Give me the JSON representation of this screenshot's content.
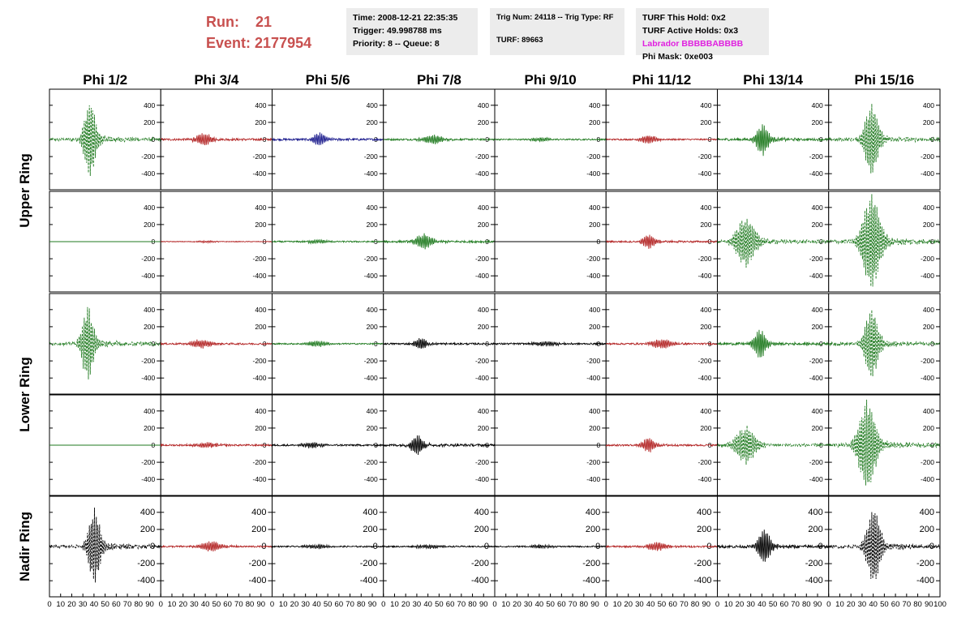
{
  "header": {
    "run_label": "Run:",
    "run_value": "21",
    "event_label": "Event:",
    "event_value": "2177954",
    "time": "Time: 2008-12-21 22:35:35",
    "trigger": "Trigger: 49.998788 ms",
    "priority_queue": "Priority: 8 -- Queue: 8",
    "trig_num_type": "Trig Num: 24118 -- Trig Type: RF",
    "turf": "TURF: 89663",
    "turf_this_hold": "TURF This Hold: 0x2",
    "turf_active_holds": "TURF Active Holds: 0x3",
    "labrador": "Labrador BBBBBABBBB",
    "phi_mask": "Phi Mask: 0xe003"
  },
  "colors": {
    "green": "#1f7a1f",
    "red": "#b22222",
    "blue": "#1a1a8c",
    "black": "#000000",
    "header_red": "#c8504f",
    "labrador": "#e020e0"
  },
  "chart_data": {
    "type": "line",
    "title": "",
    "columns": [
      "Phi 1/2",
      "Phi 3/4",
      "Phi 5/6",
      "Phi 7/8",
      "Phi 9/10",
      "Phi 11/12",
      "Phi 13/14",
      "Phi 15/16"
    ],
    "rows": [
      "Upper Ring",
      "Lower Ring",
      "Nadir Ring"
    ],
    "xlim": [
      0,
      100
    ],
    "x_ticks": [
      0,
      10,
      20,
      30,
      40,
      50,
      60,
      70,
      80,
      90,
      100
    ],
    "ylim": [
      -550,
      550
    ],
    "y_ticks": [
      -400,
      -200,
      0,
      200,
      400
    ],
    "panel_rows": [
      {
        "panels": [
          {
            "color": "green",
            "dashed": true,
            "amp": 420,
            "center": 36,
            "width": 6,
            "noise": 18
          },
          {
            "color": "red",
            "dashed": false,
            "amp": 70,
            "center": 38,
            "width": 8,
            "noise": 12
          },
          {
            "color": "blue",
            "dashed": false,
            "amp": 70,
            "center": 42,
            "width": 6,
            "noise": 12
          },
          {
            "color": "green",
            "dashed": false,
            "amp": 50,
            "center": 44,
            "width": 10,
            "noise": 10
          },
          {
            "color": "green",
            "dashed": false,
            "amp": 20,
            "center": 40,
            "width": 10,
            "noise": 8
          },
          {
            "color": "red",
            "dashed": false,
            "amp": 45,
            "center": 38,
            "width": 8,
            "noise": 8
          },
          {
            "color": "green",
            "dashed": false,
            "amp": 170,
            "center": 40,
            "width": 6,
            "noise": 14
          },
          {
            "color": "green",
            "dashed": true,
            "amp": 380,
            "center": 38,
            "width": 7,
            "noise": 18
          }
        ]
      },
      {
        "panels": [
          {
            "color": "green",
            "dashed": false,
            "amp": 0,
            "center": 40,
            "width": 6,
            "noise": 0
          },
          {
            "color": "red",
            "dashed": false,
            "amp": 10,
            "center": 40,
            "width": 10,
            "noise": 4
          },
          {
            "color": "green",
            "dashed": false,
            "amp": 20,
            "center": 40,
            "width": 10,
            "noise": 8
          },
          {
            "color": "green",
            "dashed": false,
            "amp": 85,
            "center": 36,
            "width": 8,
            "noise": 12
          },
          {
            "color": "black",
            "dashed": false,
            "amp": 0,
            "center": 40,
            "width": 6,
            "noise": 0
          },
          {
            "color": "red",
            "dashed": false,
            "amp": 80,
            "center": 38,
            "width": 6,
            "noise": 10
          },
          {
            "color": "green",
            "dashed": true,
            "amp": 260,
            "center": 25,
            "width": 10,
            "noise": 18
          },
          {
            "color": "green",
            "dashed": true,
            "amp": 520,
            "center": 38,
            "width": 9,
            "noise": 22
          }
        ]
      },
      {
        "panels": [
          {
            "color": "green",
            "dashed": true,
            "amp": 400,
            "center": 34,
            "width": 6,
            "noise": 18
          },
          {
            "color": "red",
            "dashed": false,
            "amp": 45,
            "center": 35,
            "width": 10,
            "noise": 10
          },
          {
            "color": "green",
            "dashed": false,
            "amp": 30,
            "center": 40,
            "width": 10,
            "noise": 8
          },
          {
            "color": "black",
            "dashed": false,
            "amp": 65,
            "center": 33,
            "width": 6,
            "noise": 10
          },
          {
            "color": "black",
            "dashed": false,
            "amp": 25,
            "center": 45,
            "width": 12,
            "noise": 10
          },
          {
            "color": "red",
            "dashed": false,
            "amp": 55,
            "center": 50,
            "width": 10,
            "noise": 10
          },
          {
            "color": "green",
            "dashed": false,
            "amp": 160,
            "center": 38,
            "width": 6,
            "noise": 14
          },
          {
            "color": "green",
            "dashed": true,
            "amp": 380,
            "center": 38,
            "width": 7,
            "noise": 18
          }
        ]
      },
      {
        "panels": [
          {
            "color": "green",
            "dashed": false,
            "amp": 0,
            "center": 40,
            "width": 6,
            "noise": 0
          },
          {
            "color": "red",
            "dashed": false,
            "amp": 25,
            "center": 40,
            "width": 12,
            "noise": 10
          },
          {
            "color": "black",
            "dashed": false,
            "amp": 30,
            "center": 35,
            "width": 10,
            "noise": 10
          },
          {
            "color": "black",
            "dashed": false,
            "amp": 110,
            "center": 30,
            "width": 6,
            "noise": 14
          },
          {
            "color": "black",
            "dashed": false,
            "amp": 0,
            "center": 40,
            "width": 6,
            "noise": 0
          },
          {
            "color": "red",
            "dashed": false,
            "amp": 80,
            "center": 38,
            "width": 6,
            "noise": 10
          },
          {
            "color": "green",
            "dashed": true,
            "amp": 200,
            "center": 25,
            "width": 10,
            "noise": 18
          },
          {
            "color": "green",
            "dashed": true,
            "amp": 480,
            "center": 34,
            "width": 9,
            "noise": 22
          }
        ]
      },
      {
        "panels": [
          {
            "color": "black",
            "dashed": true,
            "amp": 410,
            "center": 40,
            "width": 6,
            "noise": 18
          },
          {
            "color": "red",
            "dashed": false,
            "amp": 55,
            "center": 45,
            "width": 10,
            "noise": 10
          },
          {
            "color": "black",
            "dashed": false,
            "amp": 20,
            "center": 40,
            "width": 12,
            "noise": 8
          },
          {
            "color": "black",
            "dashed": false,
            "amp": 20,
            "center": 40,
            "width": 12,
            "noise": 8
          },
          {
            "color": "black",
            "dashed": false,
            "amp": 15,
            "center": 40,
            "width": 12,
            "noise": 8
          },
          {
            "color": "red",
            "dashed": false,
            "amp": 45,
            "center": 45,
            "width": 10,
            "noise": 10
          },
          {
            "color": "black",
            "dashed": false,
            "amp": 190,
            "center": 42,
            "width": 6,
            "noise": 16
          },
          {
            "color": "black",
            "dashed": true,
            "amp": 410,
            "center": 40,
            "width": 7,
            "noise": 18
          }
        ]
      }
    ]
  }
}
